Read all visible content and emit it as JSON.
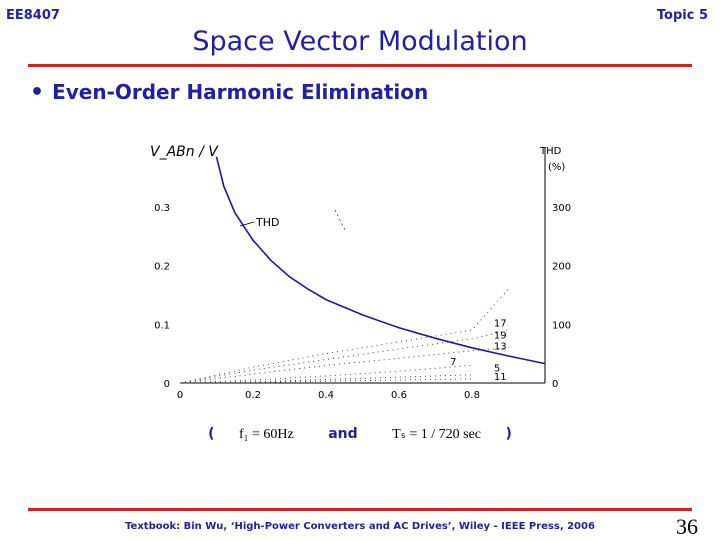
{
  "header": {
    "course": "EE8407",
    "topic": "Topic 5",
    "title": "Space Vector Modulation"
  },
  "bullet": "Even-Order Harmonic Elimination",
  "conditions": {
    "open": "(",
    "f1": "f₁ = 60Hz",
    "and_word": "and",
    "ts": "Tₛ = 1 / 720 sec",
    "close": ")"
  },
  "footer": {
    "citation": "Textbook: Bin Wu, ‘High-Power Converters and AC Drives’, Wiley - IEEE Press, 2006",
    "page": "36"
  },
  "chart_data": {
    "type": "line",
    "left_axis_label": "V_ABn / V",
    "right_axis_label": "THD",
    "right_axis_unit": "(%)",
    "x_ticks": [
      "0",
      "0.2",
      "0.4",
      "0.6",
      "0.8"
    ],
    "left_ticks": [
      "0",
      "0.1",
      "0.2",
      "0.3"
    ],
    "right_ticks": [
      "0",
      "100",
      "200",
      "300"
    ],
    "xlim": [
      0,
      1.0
    ],
    "ylim_left": [
      0,
      0.4
    ],
    "ylim_right": [
      0,
      400
    ],
    "colors": {
      "thd": "#1a1aa8",
      "harmonics": "#444444"
    },
    "thd_label": "THD",
    "thd_curve": {
      "x": [
        0.1,
        0.12,
        0.15,
        0.2,
        0.25,
        0.3,
        0.35,
        0.4,
        0.5,
        0.6,
        0.7,
        0.8,
        0.9,
        1.0
      ],
      "y": [
        385,
        335,
        290,
        243,
        208,
        181,
        160,
        142,
        116,
        94,
        76,
        60,
        46,
        33
      ]
    },
    "harmonics": [
      {
        "name": "17",
        "x": [
          0,
          0.2,
          0.4,
          0.6,
          0.8,
          0.9
        ],
        "y": [
          0,
          0.027,
          0.05,
          0.07,
          0.09,
          0.16
        ]
      },
      {
        "name": "19",
        "x": [
          0,
          0.2,
          0.4,
          0.6,
          0.8,
          0.9
        ],
        "y": [
          0,
          0.022,
          0.04,
          0.058,
          0.075,
          0.09
        ]
      },
      {
        "name": "13",
        "x": [
          0,
          0.2,
          0.4,
          0.6,
          0.8,
          0.9
        ],
        "y": [
          0,
          0.015,
          0.03,
          0.042,
          0.055,
          0.06
        ]
      },
      {
        "name": "7",
        "x": [
          0,
          0.2,
          0.4,
          0.6,
          0.8
        ],
        "y": [
          0,
          0.005,
          0.012,
          0.02,
          0.03
        ]
      },
      {
        "name": "5",
        "x": [
          0,
          0.2,
          0.4,
          0.6,
          0.8
        ],
        "y": [
          0,
          0.002,
          0.006,
          0.01,
          0.014
        ]
      },
      {
        "name": "11",
        "x": [
          0,
          0.2,
          0.4,
          0.6,
          0.8
        ],
        "y": [
          0,
          0.001,
          0.003,
          0.005,
          0.007
        ]
      }
    ]
  }
}
